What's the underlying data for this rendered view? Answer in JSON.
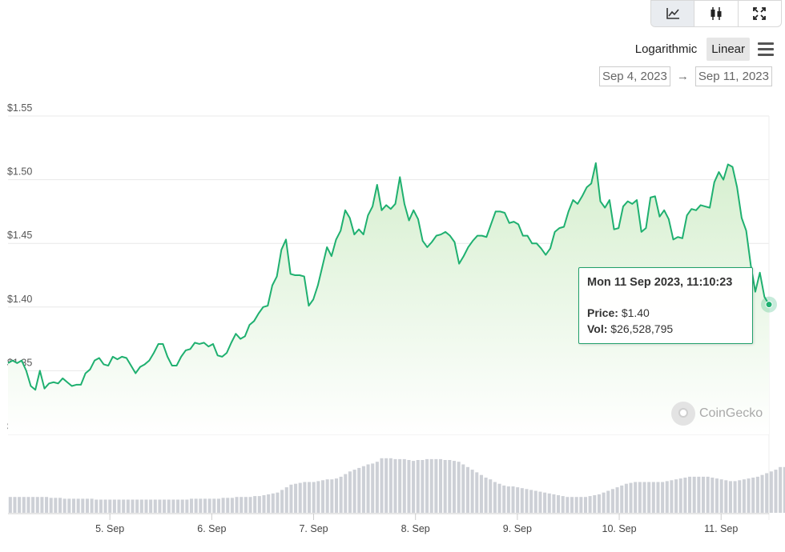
{
  "toolbar": {
    "buttons": [
      {
        "name": "line-chart-icon",
        "active": true
      },
      {
        "name": "candlestick-icon",
        "active": false
      },
      {
        "name": "fullscreen-icon",
        "active": false
      }
    ]
  },
  "scale": {
    "log_label": "Logarithmic",
    "linear_label": "Linear",
    "selected": "Linear"
  },
  "range": {
    "from": "Sep 4, 2023",
    "arrow": "→",
    "to": "Sep 11, 2023"
  },
  "tooltip": {
    "title": "Mon 11 Sep 2023, 11:10:23",
    "price_label": "Price:",
    "price_value": "$1.40",
    "vol_label": "Vol:",
    "vol_value": "$26,528,795"
  },
  "logo": {
    "text": "CoinGecko"
  },
  "colors": {
    "line": "#1fb070",
    "area_top": "#d6efcf",
    "area_bottom": "#ffffff",
    "volume": "#cdd0d6",
    "grid": "#e8e8e8"
  },
  "chart_data": {
    "type": "line",
    "y_ticks": [
      "$1.30",
      "$1.35",
      "$1.40",
      "$1.45",
      "$1.50",
      "$1.55"
    ],
    "ylim": [
      1.3,
      1.55
    ],
    "x_ticks": [
      "5. Sep",
      "6. Sep",
      "7. Sep",
      "8. Sep",
      "9. Sep",
      "10. Sep",
      "11. Sep"
    ],
    "x_tick_days": [
      1,
      2,
      3,
      4,
      5,
      6,
      7
    ],
    "xlim": [
      0.0,
      7.47
    ],
    "series": [
      {
        "values": [
          1.356,
          1.358,
          1.356,
          1.358,
          1.35,
          1.338,
          1.335,
          1.35,
          1.336,
          1.34,
          1.341,
          1.34,
          1.344,
          1.341,
          1.338,
          1.339,
          1.339,
          1.348,
          1.351,
          1.358,
          1.36,
          1.355,
          1.354,
          1.361,
          1.359,
          1.361,
          1.36,
          1.354,
          1.348,
          1.353,
          1.355,
          1.358,
          1.364,
          1.371,
          1.371,
          1.361,
          1.354,
          1.354,
          1.361,
          1.366,
          1.367,
          1.372,
          1.371,
          1.372,
          1.369,
          1.371,
          1.362,
          1.361,
          1.364,
          1.372,
          1.379,
          1.375,
          1.377,
          1.386,
          1.389,
          1.395,
          1.4,
          1.401,
          1.417,
          1.424,
          1.445,
          1.453,
          1.426,
          1.425,
          1.425,
          1.424,
          1.401,
          1.406,
          1.417,
          1.432,
          1.447,
          1.44,
          1.453,
          1.46,
          1.476,
          1.47,
          1.457,
          1.461,
          1.457,
          1.472,
          1.479,
          1.496,
          1.476,
          1.48,
          1.477,
          1.481,
          1.502,
          1.481,
          1.468,
          1.476,
          1.469,
          1.452,
          1.447,
          1.451,
          1.456,
          1.457,
          1.459,
          1.456,
          1.451,
          1.434,
          1.44,
          1.447,
          1.452,
          1.456,
          1.456,
          1.455,
          1.465,
          1.475,
          1.475,
          1.474,
          1.466,
          1.467,
          1.465,
          1.456,
          1.456,
          1.45,
          1.45,
          1.446,
          1.441,
          1.446,
          1.459,
          1.462,
          1.463,
          1.475,
          1.484,
          1.481,
          1.487,
          1.494,
          1.497,
          1.513,
          1.483,
          1.478,
          1.484,
          1.461,
          1.462,
          1.479,
          1.483,
          1.481,
          1.484,
          1.459,
          1.462,
          1.486,
          1.487,
          1.471,
          1.476,
          1.469,
          1.453,
          1.455,
          1.454,
          1.472,
          1.477,
          1.476,
          1.48,
          1.479,
          1.478,
          1.498,
          1.506,
          1.5,
          1.512,
          1.51,
          1.494,
          1.47,
          1.46,
          1.433,
          1.412,
          1.427,
          1.408,
          1.402
        ]
      }
    ],
    "volume_index": [
      0.18,
      0.18,
      0.18,
      0.18,
      0.18,
      0.18,
      0.18,
      0.18,
      0.18,
      0.17,
      0.17,
      0.17,
      0.16,
      0.16,
      0.16,
      0.16,
      0.16,
      0.16,
      0.16,
      0.15,
      0.15,
      0.15,
      0.15,
      0.15,
      0.15,
      0.15,
      0.15,
      0.15,
      0.15,
      0.15,
      0.15,
      0.15,
      0.15,
      0.15,
      0.15,
      0.15,
      0.15,
      0.15,
      0.15,
      0.15,
      0.16,
      0.16,
      0.16,
      0.16,
      0.16,
      0.16,
      0.16,
      0.17,
      0.17,
      0.17,
      0.18,
      0.18,
      0.18,
      0.18,
      0.19,
      0.19,
      0.2,
      0.21,
      0.22,
      0.23,
      0.26,
      0.29,
      0.32,
      0.33,
      0.34,
      0.35,
      0.35,
      0.35,
      0.36,
      0.37,
      0.38,
      0.38,
      0.39,
      0.41,
      0.44,
      0.47,
      0.49,
      0.51,
      0.53,
      0.55,
      0.56,
      0.58,
      0.62,
      0.62,
      0.62,
      0.61,
      0.61,
      0.61,
      0.6,
      0.59,
      0.6,
      0.6,
      0.61,
      0.61,
      0.61,
      0.61,
      0.6,
      0.6,
      0.59,
      0.58,
      0.55,
      0.52,
      0.49,
      0.46,
      0.43,
      0.4,
      0.38,
      0.35,
      0.33,
      0.31,
      0.3,
      0.3,
      0.29,
      0.28,
      0.27,
      0.26,
      0.25,
      0.24,
      0.23,
      0.22,
      0.21,
      0.2,
      0.19,
      0.18,
      0.18,
      0.18,
      0.18,
      0.18,
      0.19,
      0.2,
      0.21,
      0.23,
      0.25,
      0.27,
      0.29,
      0.31,
      0.33,
      0.34,
      0.35,
      0.35,
      0.35,
      0.35,
      0.35,
      0.35,
      0.35,
      0.36,
      0.37,
      0.38,
      0.39,
      0.4,
      0.41,
      0.41,
      0.41,
      0.41,
      0.41,
      0.4,
      0.39,
      0.38,
      0.37,
      0.36,
      0.36,
      0.37,
      0.38,
      0.39,
      0.4,
      0.41,
      0.43,
      0.45,
      0.47,
      0.49,
      0.52,
      0.52
    ],
    "tooltip_point": {
      "x_day": 7.47,
      "y": 1.402
    },
    "grid": true,
    "legend": "none"
  }
}
